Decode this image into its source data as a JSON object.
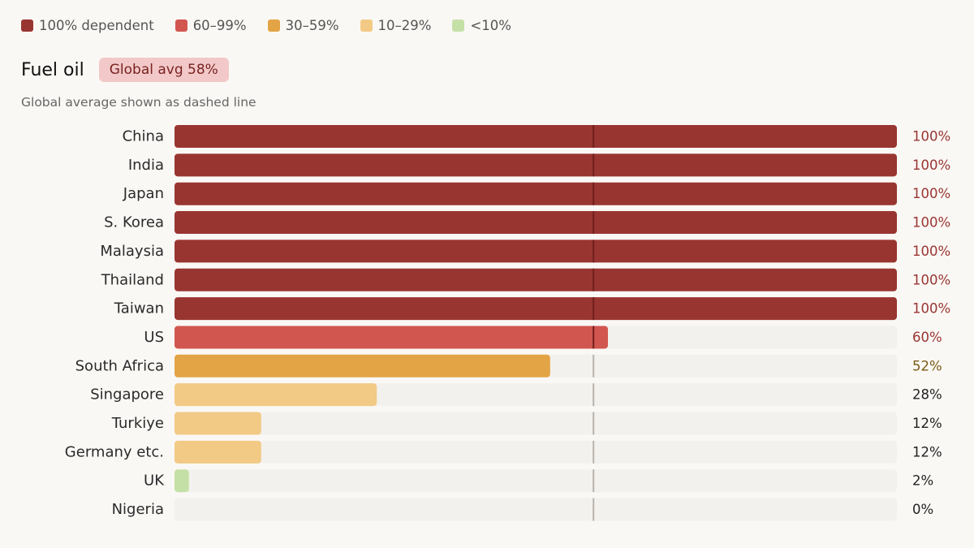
{
  "legend": [
    {
      "label": "100% dependent",
      "color": "#993531"
    },
    {
      "label": "60–99%",
      "color": "#d25650"
    },
    {
      "label": "30–59%",
      "color": "#e3a445"
    },
    {
      "label": "10–29%",
      "color": "#f2ca85"
    },
    {
      "label": "<10%",
      "color": "#c5e0a6"
    }
  ],
  "header": {
    "title": "Fuel oil",
    "badge": "Global avg 58%",
    "subtitle": "Global average shown as dashed line"
  },
  "chart_data": {
    "type": "bar",
    "orientation": "horizontal",
    "title": "Fuel oil",
    "xlim": [
      0,
      100
    ],
    "average": 58,
    "categories": [
      "China",
      "India",
      "Japan",
      "S. Korea",
      "Malaysia",
      "Thailand",
      "Taiwan",
      "US",
      "South Africa",
      "Singapore",
      "Turkiye",
      "Germany etc.",
      "UK",
      "Nigeria"
    ],
    "values": [
      100,
      100,
      100,
      100,
      100,
      100,
      100,
      60,
      52,
      28,
      12,
      12,
      2,
      0
    ],
    "value_labels": [
      "100%",
      "100%",
      "100%",
      "100%",
      "100%",
      "100%",
      "100%",
      "60%",
      "52%",
      "28%",
      "12%",
      "12%",
      "2%",
      "0%"
    ],
    "label_colors": [
      "#993531",
      "#993531",
      "#993531",
      "#993531",
      "#993531",
      "#993531",
      "#993531",
      "#993531",
      "#7a5a14",
      "#222222",
      "#222222",
      "#222222",
      "#222222",
      "#222222"
    ]
  }
}
